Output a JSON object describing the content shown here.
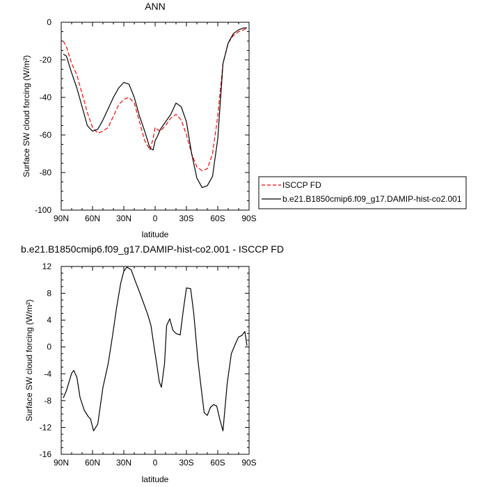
{
  "chart_data": [
    {
      "type": "line",
      "title": "ANN",
      "xlabel": "latitude",
      "ylabel": "Surface SW cloud forcing (W/m²)",
      "xlim": [
        90,
        -90
      ],
      "ylim": [
        -100,
        0
      ],
      "x_tick_values": [
        90,
        60,
        30,
        0,
        -30,
        -60,
        -90
      ],
      "x_tick_labels": [
        "90N",
        "60N",
        "30N",
        "0",
        "30S",
        "60S",
        "90S"
      ],
      "y_tick_values": [
        0,
        -20,
        -40,
        -60,
        -80,
        -100
      ],
      "y_tick_labels": [
        "0",
        "-20",
        "-40",
        "-60",
        "-80",
        "-100"
      ],
      "grid": false,
      "legend_position": "right",
      "series": [
        {
          "name": "ISCCP FD",
          "color": "#ff0000",
          "dash": "dashed",
          "x": [
            88,
            85,
            80,
            75,
            70,
            65,
            60,
            55,
            50,
            45,
            40,
            35,
            30,
            25,
            20,
            15,
            10,
            5,
            2,
            0,
            -2,
            -5,
            -10,
            -15,
            -20,
            -25,
            -30,
            -35,
            -40,
            -45,
            -50,
            -55,
            -60,
            -65,
            -70,
            -75,
            -80,
            -85,
            -88
          ],
          "values": [
            -10,
            -13,
            -22,
            -28,
            -38,
            -48,
            -56,
            -59,
            -58,
            -56,
            -50,
            -44,
            -41,
            -40,
            -43,
            -53,
            -63,
            -68,
            -62,
            -56,
            -57,
            -58,
            -55,
            -51,
            -49,
            -52,
            -60,
            -70,
            -77,
            -79,
            -78,
            -70,
            -50,
            -22,
            -11,
            -7,
            -5,
            -4,
            -3
          ]
        },
        {
          "name": "b.e21.B1850cmip6.f09_g17.DAMIP-hist-co2.001",
          "color": "#000000",
          "dash": "solid",
          "x": [
            88,
            85,
            80,
            75,
            70,
            65,
            60,
            55,
            50,
            45,
            40,
            35,
            30,
            25,
            20,
            15,
            10,
            5,
            2,
            0,
            -2,
            -5,
            -10,
            -15,
            -20,
            -25,
            -30,
            -35,
            -40,
            -45,
            -50,
            -55,
            -60,
            -65,
            -70,
            -75,
            -80,
            -85,
            -88
          ],
          "values": [
            -17,
            -18,
            -27,
            -35,
            -45,
            -55,
            -58,
            -57,
            -52,
            -46,
            -40,
            -35,
            -32,
            -33,
            -40,
            -50,
            -58,
            -67,
            -68,
            -63,
            -61,
            -57,
            -53,
            -49,
            -43,
            -45,
            -53,
            -70,
            -83,
            -88,
            -87,
            -82,
            -62,
            -22,
            -11,
            -6,
            -4,
            -3,
            -3
          ]
        }
      ]
    },
    {
      "type": "line",
      "title": "b.e21.B1850cmip6.f09_g17.DAMIP-hist-co2.001 - ISCCP FD",
      "xlabel": "latitude",
      "ylabel": "Surface SW cloud forcing (W/m²)",
      "xlim": [
        90,
        -90
      ],
      "ylim": [
        -16,
        12
      ],
      "x_tick_values": [
        90,
        60,
        30,
        0,
        -30,
        -60,
        -90
      ],
      "x_tick_labels": [
        "90N",
        "60N",
        "30N",
        "0",
        "30S",
        "60S",
        "90S"
      ],
      "y_tick_values": [
        12,
        8,
        4,
        0,
        -4,
        -8,
        -12,
        -16
      ],
      "y_tick_labels": [
        "12",
        "8",
        "4",
        "0",
        "-4",
        "-8",
        "-12",
        "-16"
      ],
      "grid": false,
      "series": [
        {
          "color": "#000000",
          "dash": "solid",
          "x": [
            88,
            85,
            80,
            78,
            75,
            72,
            68,
            64,
            62,
            59,
            55,
            50,
            45,
            41,
            37,
            33,
            30,
            27,
            23,
            19,
            15,
            11,
            7,
            4,
            1,
            -1,
            -4,
            -6,
            -9,
            -11,
            -14,
            -17,
            -20,
            -24,
            -27,
            -30,
            -34,
            -37,
            -41,
            -44,
            -47,
            -50,
            -53,
            -56,
            -59,
            -62,
            -65,
            -69,
            -73,
            -77,
            -80,
            -83,
            -86,
            -88
          ],
          "values": [
            -7.6,
            -6.5,
            -3.9,
            -3.5,
            -4.5,
            -7.5,
            -9.4,
            -10.4,
            -10.7,
            -12.5,
            -11.5,
            -6,
            -2.5,
            1.5,
            5.8,
            9.5,
            11.3,
            11.9,
            11.5,
            9.8,
            8.2,
            6.5,
            4.8,
            3.2,
            0,
            -2,
            -5.2,
            -6,
            -2.5,
            3.2,
            4.2,
            2.5,
            2,
            1.8,
            5.5,
            8.8,
            8.7,
            5,
            -2,
            -6,
            -9.8,
            -10.2,
            -9,
            -8.6,
            -8.8,
            -10.8,
            -12.5,
            -5.5,
            -1,
            0.5,
            1.5,
            1.7,
            2.3,
            0.2
          ]
        }
      ]
    }
  ]
}
